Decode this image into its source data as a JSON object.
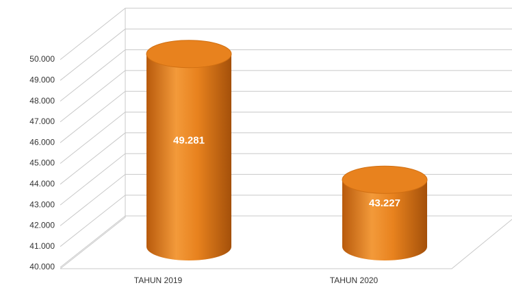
{
  "chart_data": {
    "type": "bar",
    "categories": [
      "TAHUN 2019",
      "TAHUN 2020"
    ],
    "values": [
      49281,
      43227
    ],
    "value_labels": [
      "49.281",
      "43.227"
    ],
    "color": "#e8821e",
    "ylim": [
      40000,
      50000
    ],
    "yticks": [
      {
        "value": 40000,
        "label": "40.000"
      },
      {
        "value": 41000,
        "label": "41.000"
      },
      {
        "value": 42000,
        "label": "42.000"
      },
      {
        "value": 43000,
        "label": "43.000"
      },
      {
        "value": 44000,
        "label": "44.000"
      },
      {
        "value": 45000,
        "label": "45.000"
      },
      {
        "value": 46000,
        "label": "46.000"
      },
      {
        "value": 47000,
        "label": "47.000"
      },
      {
        "value": 48000,
        "label": "48.000"
      },
      {
        "value": 49000,
        "label": "49.000"
      },
      {
        "value": 50000,
        "label": "50.000"
      }
    ],
    "grid": true
  }
}
